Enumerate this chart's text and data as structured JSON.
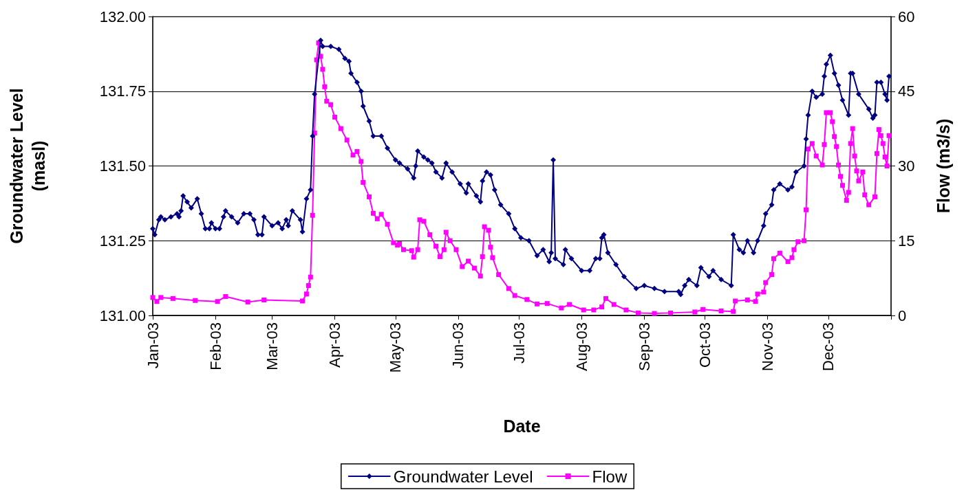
{
  "chart_data": {
    "type": "line",
    "xlabel": "Date",
    "ylabel": "Groundwater Level\n(masl)",
    "y2label": "Flow (m3/s)",
    "xlim": [
      "2003-01-01",
      "2004-01-01"
    ],
    "xticks": [
      {
        "value": "2003-01-01",
        "label": "Jan-03"
      },
      {
        "value": "2003-02-01",
        "label": "Feb-03"
      },
      {
        "value": "2003-03-01",
        "label": "Mar-03"
      },
      {
        "value": "2003-04-01",
        "label": "Apr-03"
      },
      {
        "value": "2003-05-01",
        "label": "May-03"
      },
      {
        "value": "2003-06-01",
        "label": "Jun-03"
      },
      {
        "value": "2003-07-01",
        "label": "Jul-03"
      },
      {
        "value": "2003-08-01",
        "label": "Aug-03"
      },
      {
        "value": "2003-09-01",
        "label": "Sep-03"
      },
      {
        "value": "2003-10-01",
        "label": "Oct-03"
      },
      {
        "value": "2003-11-01",
        "label": "Nov-03"
      },
      {
        "value": "2003-12-01",
        "label": "Dec-03"
      },
      {
        "value": "2004-01-01",
        "label": null
      }
    ],
    "ylim": [
      131,
      132
    ],
    "yticks": [
      {
        "value": 131,
        "label": "131.00"
      },
      {
        "value": 131.25,
        "label": "131.25"
      },
      {
        "value": 131.5,
        "label": "131.50"
      },
      {
        "value": 131.75,
        "label": "131.75"
      },
      {
        "value": 132,
        "label": "132.00"
      }
    ],
    "y2lim": [
      0,
      60
    ],
    "y2ticks": [
      0,
      15,
      30,
      45,
      60
    ],
    "grid": "y",
    "legend": "bottom",
    "line_style": "solid",
    "series": [
      {
        "name": "Groundwater Level",
        "color": "#000080",
        "marker": "diamond",
        "x": [
          "2003-01-01",
          "2003-01-02",
          "2003-01-04",
          "2003-01-05",
          "2003-01-07",
          "2003-01-10",
          "2003-01-13",
          "2003-01-14",
          "2003-01-15",
          "2003-01-16",
          "2003-01-18",
          "2003-01-20",
          "2003-01-23",
          "2003-01-25",
          "2003-01-27",
          "2003-01-29",
          "2003-01-30",
          "2003-02-01",
          "2003-02-03",
          "2003-02-05",
          "2003-02-06",
          "2003-02-09",
          "2003-02-12",
          "2003-02-15",
          "2003-02-18",
          "2003-02-20",
          "2003-02-22",
          "2003-02-24",
          "2003-02-25",
          "2003-03-01",
          "2003-03-04",
          "2003-03-06",
          "2003-03-08",
          "2003-03-09",
          "2003-03-11",
          "2003-03-15",
          "2003-03-16",
          "2003-03-18",
          "2003-03-20",
          "2003-03-21",
          "2003-03-22",
          "2003-03-25",
          "2003-03-26",
          "2003-03-30",
          "2003-04-03",
          "2003-04-06",
          "2003-04-08",
          "2003-04-09",
          "2003-04-12",
          "2003-04-14",
          "2003-04-15",
          "2003-04-18",
          "2003-04-20",
          "2003-04-24",
          "2003-04-27",
          "2003-05-01",
          "2003-05-03",
          "2003-05-07",
          "2003-05-10",
          "2003-05-11",
          "2003-05-12",
          "2003-05-15",
          "2003-05-17",
          "2003-05-19",
          "2003-05-21",
          "2003-05-24",
          "2003-05-26",
          "2003-05-29",
          "2003-06-02",
          "2003-06-05",
          "2003-06-06",
          "2003-06-10",
          "2003-06-12",
          "2003-06-13",
          "2003-06-15",
          "2003-06-17",
          "2003-06-19",
          "2003-06-22",
          "2003-06-26",
          "2003-06-29",
          "2003-07-02",
          "2003-07-06",
          "2003-07-10",
          "2003-07-13",
          "2003-07-16",
          "2003-07-17",
          "2003-07-18",
          "2003-07-19",
          "2003-07-23",
          "2003-07-24",
          "2003-07-27",
          "2003-08-01",
          "2003-08-05",
          "2003-08-08",
          "2003-08-10",
          "2003-08-11",
          "2003-08-12",
          "2003-08-14",
          "2003-08-18",
          "2003-08-22",
          "2003-08-28",
          "2003-09-01",
          "2003-09-06",
          "2003-09-11",
          "2003-09-18",
          "2003-09-19",
          "2003-09-21",
          "2003-09-23",
          "2003-09-27",
          "2003-09-29",
          "2003-10-03",
          "2003-10-05",
          "2003-10-09",
          "2003-10-14",
          "2003-10-15",
          "2003-10-18",
          "2003-10-20",
          "2003-10-22",
          "2003-10-25",
          "2003-10-27",
          "2003-10-30",
          "2003-10-31",
          "2003-11-03",
          "2003-11-04",
          "2003-11-07",
          "2003-11-11",
          "2003-11-13",
          "2003-11-15",
          "2003-11-19",
          "2003-11-20",
          "2003-11-21",
          "2003-11-23",
          "2003-11-25",
          "2003-11-28",
          "2003-11-29",
          "2003-11-30",
          "2003-12-02",
          "2003-12-04",
          "2003-12-06",
          "2003-12-08",
          "2003-12-11",
          "2003-12-12",
          "2003-12-13",
          "2003-12-16",
          "2003-12-21",
          "2003-12-23",
          "2003-12-24",
          "2003-12-25",
          "2003-12-27",
          "2003-12-29",
          "2003-12-30",
          "2003-12-31"
        ],
        "values": [
          131.29,
          131.27,
          131.32,
          131.33,
          131.32,
          131.33,
          131.34,
          131.33,
          131.35,
          131.4,
          131.38,
          131.36,
          131.39,
          131.34,
          131.29,
          131.29,
          131.31,
          131.29,
          131.29,
          131.33,
          131.35,
          131.33,
          131.31,
          131.34,
          131.34,
          131.32,
          131.27,
          131.27,
          131.33,
          131.3,
          131.31,
          131.29,
          131.32,
          131.3,
          131.35,
          131.32,
          131.28,
          131.39,
          131.42,
          131.6,
          131.74,
          131.92,
          131.9,
          131.9,
          131.89,
          131.86,
          131.85,
          131.81,
          131.78,
          131.75,
          131.7,
          131.65,
          131.6,
          131.6,
          131.56,
          131.52,
          131.51,
          131.49,
          131.46,
          131.5,
          131.55,
          131.53,
          131.52,
          131.51,
          131.48,
          131.46,
          131.51,
          131.48,
          131.44,
          131.41,
          131.44,
          131.4,
          131.38,
          131.45,
          131.48,
          131.47,
          131.42,
          131.37,
          131.34,
          131.29,
          131.26,
          131.25,
          131.2,
          131.22,
          131.18,
          131.21,
          131.52,
          131.19,
          131.17,
          131.22,
          131.19,
          131.15,
          131.15,
          131.19,
          131.19,
          131.26,
          131.27,
          131.21,
          131.17,
          131.13,
          131.09,
          131.1,
          131.09,
          131.08,
          131.08,
          131.07,
          131.1,
          131.12,
          131.1,
          131.16,
          131.13,
          131.15,
          131.12,
          131.1,
          131.27,
          131.22,
          131.21,
          131.25,
          131.21,
          131.25,
          131.3,
          131.34,
          131.37,
          131.42,
          131.44,
          131.42,
          131.43,
          131.48,
          131.5,
          131.59,
          131.67,
          131.75,
          131.73,
          131.74,
          131.8,
          131.84,
          131.87,
          131.81,
          131.77,
          131.72,
          131.67,
          131.81,
          131.81,
          131.74,
          131.69,
          131.66,
          131.67,
          131.78,
          131.78,
          131.74,
          131.72,
          131.8
        ]
      },
      {
        "name": "Flow",
        "color": "#ff00ff",
        "marker": "square",
        "axis": "y2",
        "x": [
          "2003-01-01",
          "2003-01-03",
          "2003-01-05",
          "2003-01-11",
          "2003-01-22",
          "2003-02-02",
          "2003-02-06",
          "2003-02-17",
          "2003-02-25",
          "2003-03-16",
          "2003-03-18",
          "2003-03-19",
          "2003-03-20",
          "2003-03-21",
          "2003-03-22",
          "2003-03-23",
          "2003-03-24",
          "2003-03-25",
          "2003-03-26",
          "2003-03-27",
          "2003-03-28",
          "2003-03-30",
          "2003-04-01",
          "2003-04-04",
          "2003-04-07",
          "2003-04-10",
          "2003-04-12",
          "2003-04-14",
          "2003-04-15",
          "2003-04-18",
          "2003-04-20",
          "2003-04-22",
          "2003-04-24",
          "2003-04-27",
          "2003-04-30",
          "2003-05-02",
          "2003-05-03",
          "2003-05-05",
          "2003-05-09",
          "2003-05-10",
          "2003-05-12",
          "2003-05-13",
          "2003-05-15",
          "2003-05-18",
          "2003-05-21",
          "2003-05-23",
          "2003-05-25",
          "2003-05-26",
          "2003-05-28",
          "2003-05-31",
          "2003-06-03",
          "2003-06-06",
          "2003-06-09",
          "2003-06-12",
          "2003-06-13",
          "2003-06-14",
          "2003-06-16",
          "2003-06-17",
          "2003-06-18",
          "2003-06-21",
          "2003-06-26",
          "2003-06-29",
          "2003-07-05",
          "2003-07-10",
          "2003-07-15",
          "2003-07-22",
          "2003-07-26",
          "2003-08-02",
          "2003-08-07",
          "2003-08-11",
          "2003-08-13",
          "2003-08-17",
          "2003-08-23",
          "2003-08-29",
          "2003-09-06",
          "2003-09-14",
          "2003-09-26",
          "2003-09-30",
          "2003-10-09",
          "2003-10-15",
          "2003-10-16",
          "2003-10-22",
          "2003-10-26",
          "2003-10-27",
          "2003-10-30",
          "2003-10-31",
          "2003-11-03",
          "2003-11-04",
          "2003-11-07",
          "2003-11-11",
          "2003-11-13",
          "2003-11-14",
          "2003-11-16",
          "2003-11-19",
          "2003-11-20",
          "2003-11-21",
          "2003-11-23",
          "2003-11-25",
          "2003-11-28",
          "2003-11-29",
          "2003-11-30",
          "2003-12-02",
          "2003-12-03",
          "2003-12-04",
          "2003-12-05",
          "2003-12-06",
          "2003-12-07",
          "2003-12-08",
          "2003-12-10",
          "2003-12-11",
          "2003-12-12",
          "2003-12-13",
          "2003-12-14",
          "2003-12-15",
          "2003-12-16",
          "2003-12-18",
          "2003-12-19",
          "2003-12-21",
          "2003-12-24",
          "2003-12-25",
          "2003-12-26",
          "2003-12-27",
          "2003-12-28",
          "2003-12-29",
          "2003-12-30",
          "2003-12-31"
        ],
        "values": [
          3.6,
          2.8,
          3.6,
          3.4,
          3.0,
          2.8,
          3.8,
          2.7,
          3.1,
          2.9,
          4.3,
          6.0,
          7.7,
          20.1,
          36.6,
          51.3,
          54.7,
          52.0,
          49.4,
          45.9,
          43.0,
          42.3,
          39.8,
          37.5,
          35.2,
          32.2,
          32.9,
          30.9,
          26.7,
          23.8,
          20.5,
          19.4,
          20.3,
          18.3,
          14.6,
          14.1,
          14.4,
          13.2,
          13.0,
          11.7,
          13.2,
          19.2,
          18.9,
          16.2,
          13.9,
          11.8,
          13.2,
          16.7,
          15.0,
          13.2,
          9.8,
          10.9,
          9.5,
          7.9,
          11.8,
          17.8,
          17.1,
          13.7,
          11.6,
          8.2,
          5.4,
          4.0,
          3.2,
          2.3,
          2.4,
          1.5,
          2.2,
          1.1,
          1.1,
          1.7,
          3.4,
          2.2,
          1.1,
          0.5,
          0.4,
          0.5,
          0.7,
          1.2,
          0.9,
          0.8,
          2.9,
          3.1,
          2.8,
          4.3,
          4.7,
          6.6,
          8.2,
          11.4,
          12.5,
          10.8,
          11.6,
          13.2,
          14.8,
          15.0,
          21.2,
          33.4,
          34.5,
          32.0,
          30.2,
          34.3,
          40.7,
          40.7,
          38.9,
          35.9,
          33.9,
          30.2,
          27.9,
          26.1,
          23.1,
          24.7,
          34.5,
          37.5,
          32.0,
          29.0,
          27.0,
          28.8,
          24.2,
          22.2,
          23.8,
          32.5,
          37.3,
          36.1,
          34.5,
          31.8,
          30.0,
          36.1
        ]
      }
    ]
  }
}
